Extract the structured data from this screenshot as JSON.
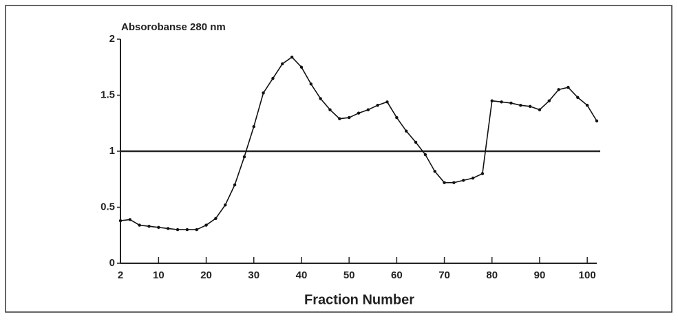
{
  "chart_data": {
    "type": "line",
    "title": "Absorobanse 280 nm",
    "x_label": "Fraction Number",
    "x": [
      2,
      4,
      6,
      8,
      10,
      12,
      14,
      16,
      18,
      20,
      22,
      24,
      26,
      28,
      30,
      32,
      34,
      36,
      38,
      40,
      42,
      44,
      46,
      48,
      50,
      52,
      54,
      56,
      58,
      60,
      62,
      64,
      66,
      68,
      70,
      72,
      74,
      76,
      78,
      80,
      82,
      84,
      86,
      88,
      90,
      92,
      94,
      96,
      98,
      100,
      102
    ],
    "series": [
      {
        "color": "#111111",
        "values": [
          0.38,
          0.39,
          0.34,
          0.33,
          0.32,
          0.31,
          0.3,
          0.3,
          0.3,
          0.34,
          0.4,
          0.52,
          0.7,
          0.95,
          1.22,
          1.52,
          1.65,
          1.78,
          1.84,
          1.75,
          1.6,
          1.47,
          1.37,
          1.29,
          1.3,
          1.34,
          1.37,
          1.41,
          1.44,
          1.3,
          1.18,
          1.08,
          0.97,
          0.82,
          0.72,
          0.72,
          0.74,
          0.76,
          0.8,
          1.45,
          1.44,
          1.43,
          1.41,
          1.4,
          1.37,
          1.45,
          1.55,
          1.57,
          1.48,
          1.41,
          1.27
        ]
      }
    ],
    "xlim": [
      2,
      102
    ],
    "xticks": [
      2,
      10,
      20,
      30,
      40,
      50,
      60,
      70,
      80,
      90,
      100
    ],
    "ylim": [
      0,
      2
    ],
    "yticks": [
      0,
      0.5,
      1,
      1.5,
      2
    ],
    "reference_line": 1
  }
}
